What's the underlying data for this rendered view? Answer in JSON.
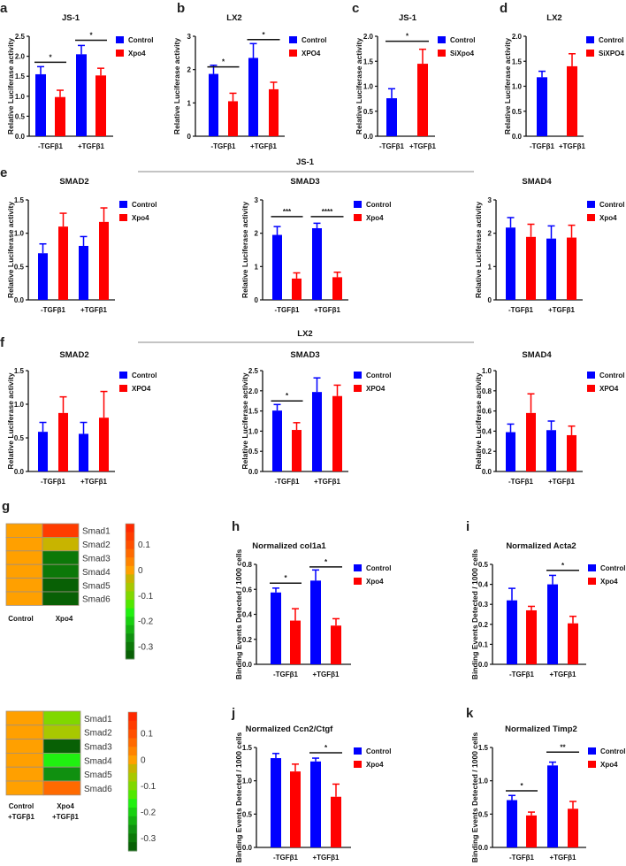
{
  "groups": {
    "e_header": "JS-1",
    "f_header": "LX2"
  },
  "chart_data": [
    {
      "id": "a",
      "letter": "a",
      "type": "bar",
      "title": "JS-1",
      "ylabel": "Relative Luciferase activity",
      "categories": [
        "-TGFβ1",
        "+TGFβ1"
      ],
      "ylim": [
        0,
        2.5
      ],
      "yticks": [
        0,
        0.5,
        1,
        1.5,
        2,
        2.5
      ],
      "ytick_labels": [
        "0.0",
        "0.5",
        "1.0",
        "1.5",
        "2.0",
        "2.5"
      ],
      "series": [
        {
          "name": "Control",
          "color": "#0000ff",
          "values": [
            1.55,
            2.05
          ],
          "error_upper": [
            1.74,
            2.27
          ]
        },
        {
          "name": "Xpo4",
          "color": "#ff0000",
          "values": [
            0.98,
            1.52
          ],
          "error_upper": [
            1.15,
            1.7
          ]
        }
      ],
      "significance": [
        {
          "between": [
            0,
            1
          ],
          "y": 1.85,
          "label": "*"
        },
        {
          "between": [
            2,
            3
          ],
          "y": 2.4,
          "label": "*"
        }
      ]
    },
    {
      "id": "b",
      "letter": "b",
      "type": "bar",
      "title": "LX2",
      "ylabel": "Relative Luciferase activity",
      "categories": [
        "-TGFβ1",
        "+TGFβ1"
      ],
      "ylim": [
        0,
        3
      ],
      "yticks": [
        0,
        1,
        2,
        3
      ],
      "ytick_labels": [
        "0",
        "1",
        "2",
        "3"
      ],
      "series": [
        {
          "name": "Control",
          "color": "#0000ff",
          "values": [
            1.87,
            2.35
          ],
          "error_upper": [
            2.13,
            2.78
          ]
        },
        {
          "name": "XPO4",
          "color": "#ff0000",
          "values": [
            1.05,
            1.41
          ],
          "error_upper": [
            1.29,
            1.62
          ]
        }
      ],
      "significance": [
        {
          "between": [
            0,
            1
          ],
          "y": 2.08,
          "label": "*"
        },
        {
          "between": [
            2,
            3
          ],
          "y": 2.9,
          "label": "*"
        }
      ]
    },
    {
      "id": "c",
      "letter": "c",
      "type": "bar",
      "title": "JS-1",
      "ylabel": "Relative Luciferase activity",
      "categories": [
        "-TGFβ1",
        "+TGFβ1"
      ],
      "ylim": [
        0,
        2
      ],
      "yticks": [
        0,
        0.5,
        1,
        1.5,
        2
      ],
      "ytick_labels": [
        "0.0",
        "0.5",
        "1.0",
        "1.5",
        "2.0"
      ],
      "series": [
        {
          "name": "Control",
          "color": "#0000ff",
          "values": [
            0.76,
            null
          ],
          "error_upper": [
            0.95,
            null
          ]
        },
        {
          "name": "SiXpo4",
          "color": "#ff0000",
          "values": [
            null,
            1.45
          ],
          "error_upper": [
            null,
            1.74
          ]
        }
      ],
      "significance": [
        {
          "between": [
            0,
            1
          ],
          "y": 1.9,
          "label": "*"
        }
      ]
    },
    {
      "id": "d",
      "letter": "d",
      "type": "bar",
      "title": "LX2",
      "ylabel": "Relative Luciferase activity",
      "categories": [
        "-TGFβ1",
        "+TGFβ1"
      ],
      "ylim": [
        0,
        2
      ],
      "yticks": [
        0,
        0.5,
        1,
        1.5,
        2
      ],
      "ytick_labels": [
        "0.0",
        "0.5",
        "1.0",
        "1.5",
        "2.0"
      ],
      "series": [
        {
          "name": "Control",
          "color": "#0000ff",
          "values": [
            1.18,
            null
          ],
          "error_upper": [
            1.3,
            null
          ]
        },
        {
          "name": "SiXPO4",
          "color": "#ff0000",
          "values": [
            null,
            1.4
          ],
          "error_upper": [
            null,
            1.65
          ]
        }
      ],
      "significance": []
    },
    {
      "id": "e1",
      "letter": "e",
      "type": "bar",
      "title": "SMAD2",
      "ylabel": "Relative Luciferase activity",
      "categories": [
        "-TGFβ1",
        "+TGFβ1"
      ],
      "ylim": [
        0,
        1.5
      ],
      "yticks": [
        0,
        0.5,
        1,
        1.5
      ],
      "ytick_labels": [
        "0.0",
        "0.5",
        "1.0",
        "1.5"
      ],
      "series": [
        {
          "name": "Control",
          "color": "#0000ff",
          "values": [
            0.7,
            0.81
          ],
          "error_upper": [
            0.84,
            0.95
          ]
        },
        {
          "name": "Xpo4",
          "color": "#ff0000",
          "values": [
            1.1,
            1.17
          ],
          "error_upper": [
            1.3,
            1.38
          ]
        }
      ],
      "significance": []
    },
    {
      "id": "e2",
      "letter": "",
      "type": "bar",
      "title": "SMAD3",
      "ylabel": "Relative Luciferase activity",
      "categories": [
        "-TGFβ1",
        "+TGFβ1"
      ],
      "ylim": [
        0,
        3
      ],
      "yticks": [
        0,
        1,
        2,
        3
      ],
      "ytick_labels": [
        "0",
        "1",
        "2",
        "3"
      ],
      "series": [
        {
          "name": "Control",
          "color": "#0000ff",
          "values": [
            1.95,
            2.15
          ],
          "error_upper": [
            2.2,
            2.3
          ]
        },
        {
          "name": "Xpo4",
          "color": "#ff0000",
          "values": [
            0.64,
            0.68
          ],
          "error_upper": [
            0.81,
            0.83
          ]
        }
      ],
      "significance": [
        {
          "between": [
            0,
            1
          ],
          "y": 2.5,
          "label": "***"
        },
        {
          "between": [
            2,
            3
          ],
          "y": 2.5,
          "label": "****"
        }
      ]
    },
    {
      "id": "e3",
      "letter": "",
      "type": "bar",
      "title": "SMAD4",
      "ylabel": "Relative Luciferase activity",
      "categories": [
        "-TGFβ1",
        "+TGFβ1"
      ],
      "ylim": [
        0,
        3
      ],
      "yticks": [
        0,
        1,
        2,
        3
      ],
      "ytick_labels": [
        "0",
        "1",
        "2",
        "3"
      ],
      "series": [
        {
          "name": "Control",
          "color": "#0000ff",
          "values": [
            2.17,
            1.84
          ],
          "error_upper": [
            2.47,
            2.22
          ]
        },
        {
          "name": "Xpo4",
          "color": "#ff0000",
          "values": [
            1.89,
            1.87
          ],
          "error_upper": [
            2.27,
            2.24
          ]
        }
      ],
      "significance": []
    },
    {
      "id": "f1",
      "letter": "f",
      "type": "bar",
      "title": "SMAD2",
      "ylabel": "Relative Luciferase activity",
      "categories": [
        "-TGFβ1",
        "+TGFβ1"
      ],
      "ylim": [
        0,
        1.5
      ],
      "yticks": [
        0,
        0.5,
        1,
        1.5
      ],
      "ytick_labels": [
        "0.0",
        "0.5",
        "1.0",
        "1.5"
      ],
      "series": [
        {
          "name": "Control",
          "color": "#0000ff",
          "values": [
            0.59,
            0.56
          ],
          "error_upper": [
            0.73,
            0.73
          ]
        },
        {
          "name": "XPO4",
          "color": "#ff0000",
          "values": [
            0.87,
            0.8
          ],
          "error_upper": [
            1.11,
            1.19
          ]
        }
      ],
      "significance": []
    },
    {
      "id": "f2",
      "letter": "",
      "type": "bar",
      "title": "SMAD3",
      "ylabel": "Relative Luciferase activity",
      "categories": [
        "-TGFβ1",
        "+TGFβ1"
      ],
      "ylim": [
        0,
        2.5
      ],
      "yticks": [
        0,
        0.5,
        1,
        1.5,
        2,
        2.5
      ],
      "ytick_labels": [
        "0.0",
        "0.5",
        "1.0",
        "1.5",
        "2.0",
        "2.5"
      ],
      "series": [
        {
          "name": "Control",
          "color": "#0000ff",
          "values": [
            1.51,
            1.97
          ],
          "error_upper": [
            1.66,
            2.32
          ]
        },
        {
          "name": "XPO4",
          "color": "#ff0000",
          "values": [
            1.03,
            1.87
          ],
          "error_upper": [
            1.21,
            2.14
          ]
        }
      ],
      "significance": [
        {
          "between": [
            0,
            1
          ],
          "y": 1.75,
          "label": "*"
        }
      ]
    },
    {
      "id": "f3",
      "letter": "",
      "type": "bar",
      "title": "SMAD4",
      "ylabel": "Relative Luciferase activity",
      "categories": [
        "-TGFβ1",
        "+TGFβ1"
      ],
      "ylim": [
        0,
        1
      ],
      "yticks": [
        0,
        0.2,
        0.4,
        0.6,
        0.8,
        1
      ],
      "ytick_labels": [
        "0.0",
        "0.2",
        "0.4",
        "0.6",
        "0.8",
        "1.0"
      ],
      "series": [
        {
          "name": "Control",
          "color": "#0000ff",
          "values": [
            0.39,
            0.41
          ],
          "error_upper": [
            0.47,
            0.5
          ]
        },
        {
          "name": "XPO4",
          "color": "#ff0000",
          "values": [
            0.58,
            0.36
          ],
          "error_upper": [
            0.77,
            0.45
          ]
        }
      ],
      "significance": []
    },
    {
      "id": "h",
      "letter": "h",
      "type": "bar",
      "title": "Normalized col1a1",
      "ylabel": "Binding Events Detected / 1000 cells",
      "categories": [
        "-TGFβ1",
        "+TGFβ1"
      ],
      "ylim": [
        0,
        0.8
      ],
      "yticks": [
        0,
        0.2,
        0.4,
        0.6,
        0.8
      ],
      "ytick_labels": [
        "0.0",
        "0.2",
        "0.4",
        "0.6",
        "0.8"
      ],
      "series": [
        {
          "name": "Control",
          "color": "#0000ff",
          "values": [
            0.575,
            0.67
          ],
          "error_upper": [
            0.61,
            0.755
          ]
        },
        {
          "name": "Xpo4",
          "color": "#ff0000",
          "values": [
            0.35,
            0.31
          ],
          "error_upper": [
            0.445,
            0.365
          ]
        }
      ],
      "significance": [
        {
          "between": [
            0,
            1
          ],
          "y": 0.65,
          "label": "*"
        },
        {
          "between": [
            2,
            3
          ],
          "y": 0.78,
          "label": "*"
        }
      ]
    },
    {
      "id": "i",
      "letter": "i",
      "type": "bar",
      "title": "Normalized Acta2",
      "ylabel": "Binding Events Detected / 1000 cells",
      "categories": [
        "-TGFβ1",
        "+TGFβ1"
      ],
      "ylim": [
        0,
        0.5
      ],
      "yticks": [
        0,
        0.1,
        0.2,
        0.3,
        0.4,
        0.5
      ],
      "ytick_labels": [
        "0.0",
        "0.1",
        "0.2",
        "0.3",
        "0.4",
        "0.5"
      ],
      "series": [
        {
          "name": "Control",
          "color": "#0000ff",
          "values": [
            0.32,
            0.4
          ],
          "error_upper": [
            0.38,
            0.445
          ]
        },
        {
          "name": "Xpo4",
          "color": "#ff0000",
          "values": [
            0.27,
            0.205
          ],
          "error_upper": [
            0.29,
            0.24
          ]
        }
      ],
      "significance": [
        {
          "between": [
            2,
            3
          ],
          "y": 0.47,
          "label": "*"
        }
      ]
    },
    {
      "id": "j",
      "letter": "j",
      "type": "bar",
      "title": "Normalized Ccn2/Ctgf",
      "ylabel": "Binding Events Detected / 1000 cells",
      "categories": [
        "-TGFβ1",
        "+TGFβ1"
      ],
      "ylim": [
        0,
        1.5
      ],
      "yticks": [
        0,
        0.5,
        1,
        1.5
      ],
      "ytick_labels": [
        "0.0",
        "0.5",
        "1.0",
        "1.5"
      ],
      "series": [
        {
          "name": "Control",
          "color": "#0000ff",
          "values": [
            1.34,
            1.29
          ],
          "error_upper": [
            1.41,
            1.34
          ]
        },
        {
          "name": "Xpo4",
          "color": "#ff0000",
          "values": [
            1.14,
            0.76
          ],
          "error_upper": [
            1.25,
            0.95
          ]
        }
      ],
      "significance": [
        {
          "between": [
            2,
            3
          ],
          "y": 1.42,
          "label": "*"
        }
      ]
    },
    {
      "id": "k",
      "letter": "k",
      "type": "bar",
      "title": "Normalized Timp2",
      "ylabel": "Binding Events Detected / 1000 cells",
      "categories": [
        "-TGFβ1",
        "+TGFβ1"
      ],
      "ylim": [
        0,
        1.5
      ],
      "yticks": [
        0,
        0.5,
        1,
        1.5
      ],
      "ytick_labels": [
        "0.0",
        "0.5",
        "1.0",
        "1.5"
      ],
      "series": [
        {
          "name": "Control",
          "color": "#0000ff",
          "values": [
            0.71,
            1.23
          ],
          "error_upper": [
            0.78,
            1.28
          ]
        },
        {
          "name": "Xpo4",
          "color": "#ff0000",
          "values": [
            0.48,
            0.58
          ],
          "error_upper": [
            0.53,
            0.69
          ]
        }
      ],
      "significance": [
        {
          "between": [
            0,
            1
          ],
          "y": 0.85,
          "label": "*"
        },
        {
          "between": [
            2,
            3
          ],
          "y": 1.43,
          "label": "**"
        }
      ]
    },
    {
      "id": "g1",
      "letter": "g",
      "type": "heatmap",
      "rows": [
        "Smad1",
        "Smad2",
        "Smad3",
        "Smad4",
        "Smad5",
        "Smad6"
      ],
      "columns": [
        [
          "Control"
        ],
        [
          "Xpo4"
        ]
      ],
      "values": [
        [
          0,
          0.12
        ],
        [
          0,
          -0.03
        ],
        [
          0,
          -0.3
        ],
        [
          0,
          -0.3
        ],
        [
          0,
          -0.35
        ],
        [
          0,
          -0.35
        ]
      ],
      "colorbar": {
        "range": [
          -0.35,
          0.18
        ],
        "ticks": [
          0.1,
          0,
          -0.1,
          -0.2,
          -0.3
        ],
        "tick_labels": [
          "0.1",
          "0",
          "-0.1",
          "-0.2",
          "-0.3"
        ],
        "colors": [
          "#ff2a00",
          "#ff3c00",
          "#ff5000",
          "#ff6a00",
          "#ff8400",
          "#ffa000",
          "#c8b400",
          "#a8c800",
          "#80d800",
          "#50e800",
          "#20f010",
          "#18d010",
          "#14b010",
          "#109010",
          "#0c7808",
          "#086005"
        ]
      }
    },
    {
      "id": "g2",
      "letter": "",
      "type": "heatmap",
      "rows": [
        "Smad1",
        "Smad2",
        "Smad3",
        "Smad4",
        "Smad5",
        "Smad6"
      ],
      "columns": [
        [
          "Control",
          "+TGFβ1"
        ],
        [
          "Xpo4",
          "+TGFβ1"
        ]
      ],
      "values": [
        [
          0,
          -0.1
        ],
        [
          0,
          -0.07
        ],
        [
          0,
          -0.35
        ],
        [
          0,
          -0.17
        ],
        [
          0,
          -0.27
        ],
        [
          0,
          0.07
        ]
      ],
      "colorbar": {
        "range": [
          -0.35,
          0.18
        ],
        "ticks": [
          0.1,
          0,
          -0.1,
          -0.2,
          -0.3
        ],
        "tick_labels": [
          "0.1",
          "0",
          "-0.1",
          "-0.2",
          "-0.3"
        ],
        "colors": [
          "#ff2a00",
          "#ff3c00",
          "#ff5000",
          "#ff6a00",
          "#ff8400",
          "#ffa000",
          "#c8b400",
          "#a8c800",
          "#80d800",
          "#50e800",
          "#20f010",
          "#18d010",
          "#14b010",
          "#109010",
          "#0c7808",
          "#086005"
        ]
      }
    }
  ]
}
